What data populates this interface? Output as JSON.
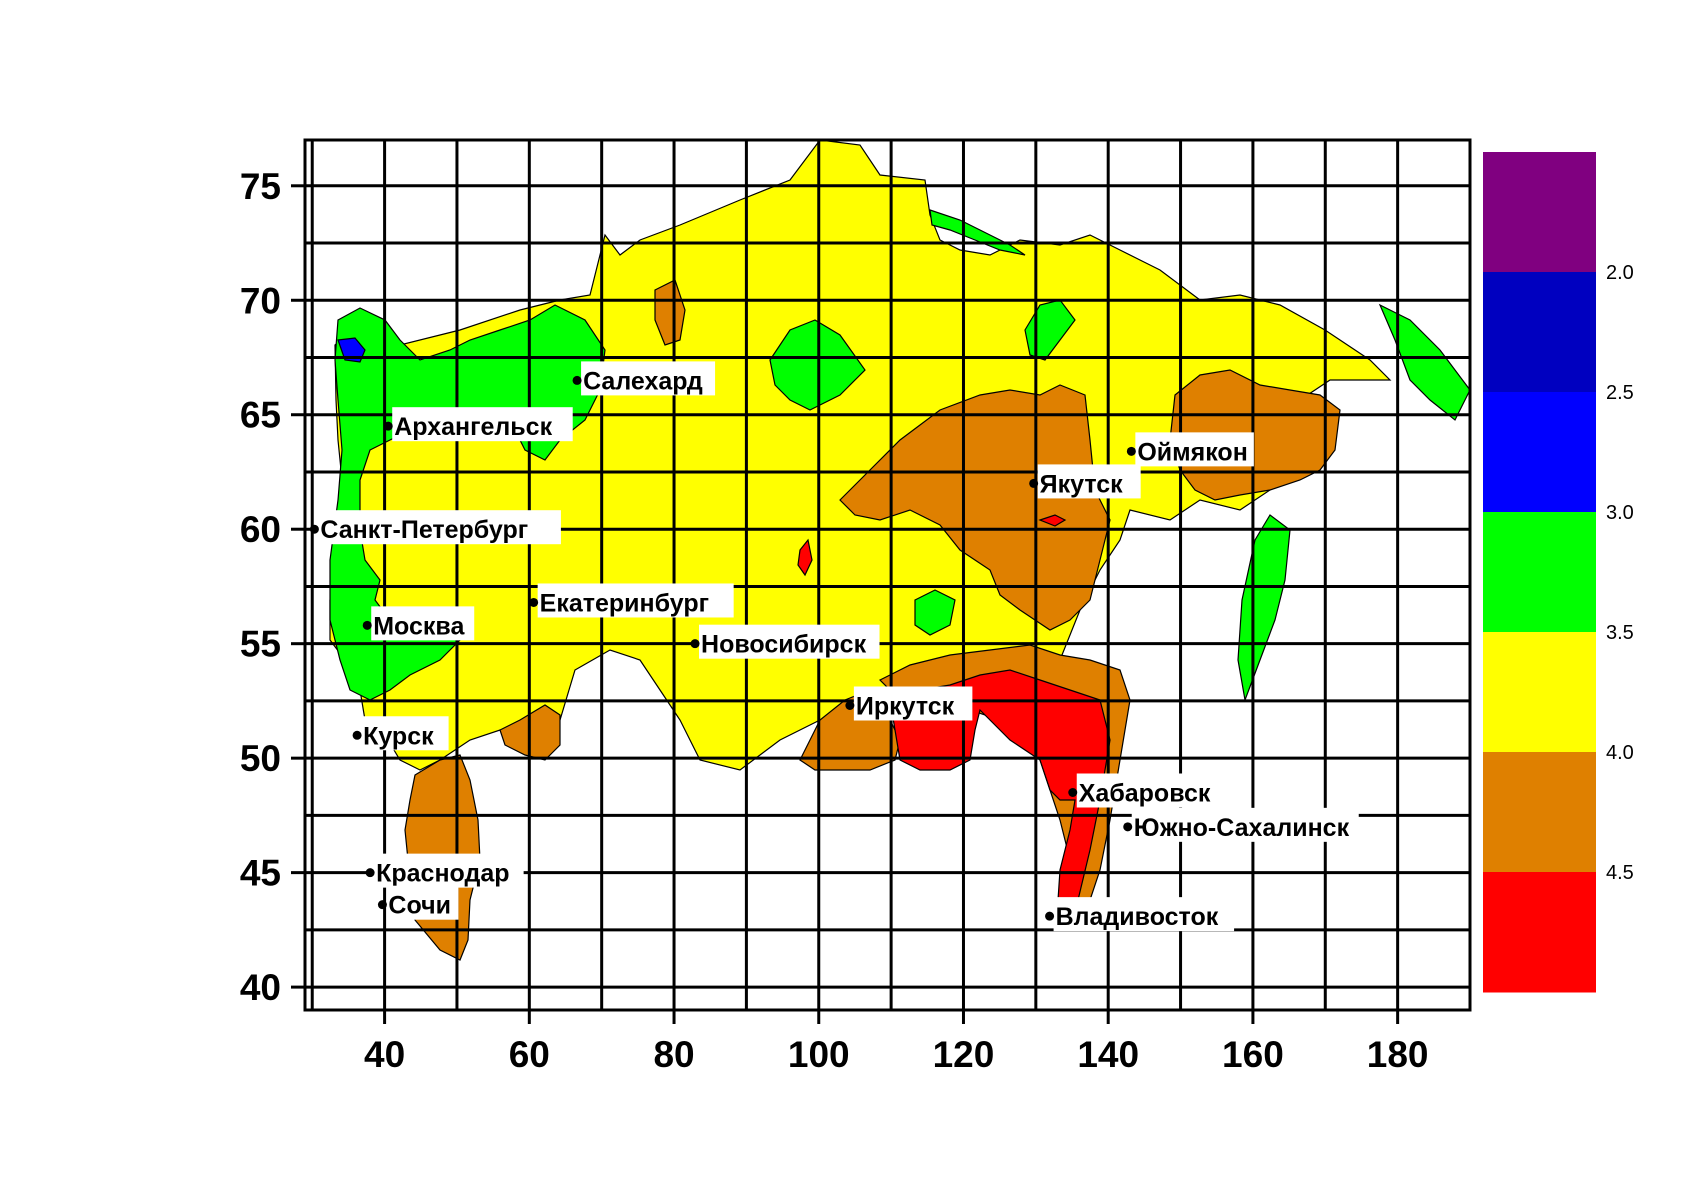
{
  "map": {
    "x_axis": {
      "ticks": [
        40,
        60,
        80,
        100,
        120,
        140,
        160,
        180
      ],
      "range": [
        29,
        190
      ]
    },
    "y_axis": {
      "ticks": [
        40,
        45,
        50,
        55,
        60,
        65,
        70,
        75
      ],
      "range": [
        39,
        77
      ]
    },
    "grid": true,
    "colors": {
      "purple": "#800080",
      "dark_blue": "#0000C0",
      "blue": "#0000FF",
      "green": "#00FF00",
      "yellow": "#FFFF00",
      "orange": "#DF8000",
      "red": "#FF0000"
    },
    "legend": {
      "placement": "right",
      "bands": [
        {
          "color": "#800080"
        },
        {
          "color": "#0000C0"
        },
        {
          "color": "#0000FF"
        },
        {
          "color": "#00FF00"
        },
        {
          "color": "#FFFF00"
        },
        {
          "color": "#DF8000"
        },
        {
          "color": "#FF0000"
        }
      ],
      "labels": [
        "2.0",
        "2.5",
        "3.0",
        "3.5",
        "4.0",
        "4.5"
      ]
    },
    "cities": [
      {
        "name": "Салехард",
        "lon": 66.6,
        "lat": 66.5
      },
      {
        "name": "Архангельск",
        "lon": 40.5,
        "lat": 64.5
      },
      {
        "name": "Оймякон",
        "lon": 143.2,
        "lat": 63.4
      },
      {
        "name": "Якутск",
        "lon": 129.7,
        "lat": 62.0
      },
      {
        "name": "Санкт-Петербург",
        "lon": 30.3,
        "lat": 60.0
      },
      {
        "name": "Екатеринбург",
        "lon": 60.6,
        "lat": 56.8
      },
      {
        "name": "Москва",
        "lon": 37.6,
        "lat": 55.8
      },
      {
        "name": "Новосибирск",
        "lon": 82.9,
        "lat": 55.0
      },
      {
        "name": "Иркутск",
        "lon": 104.3,
        "lat": 52.3
      },
      {
        "name": "Курск",
        "lon": 36.2,
        "lat": 51.0
      },
      {
        "name": "Хабаровск",
        "lon": 135.1,
        "lat": 48.5
      },
      {
        "name": "Южно-Сахалинск",
        "lon": 142.7,
        "lat": 47.0
      },
      {
        "name": "Краснодар",
        "lon": 38.0,
        "lat": 45.0
      },
      {
        "name": "Сочи",
        "lon": 39.7,
        "lat": 43.6
      },
      {
        "name": "Владивосток",
        "lon": 131.9,
        "lat": 43.1
      }
    ]
  }
}
